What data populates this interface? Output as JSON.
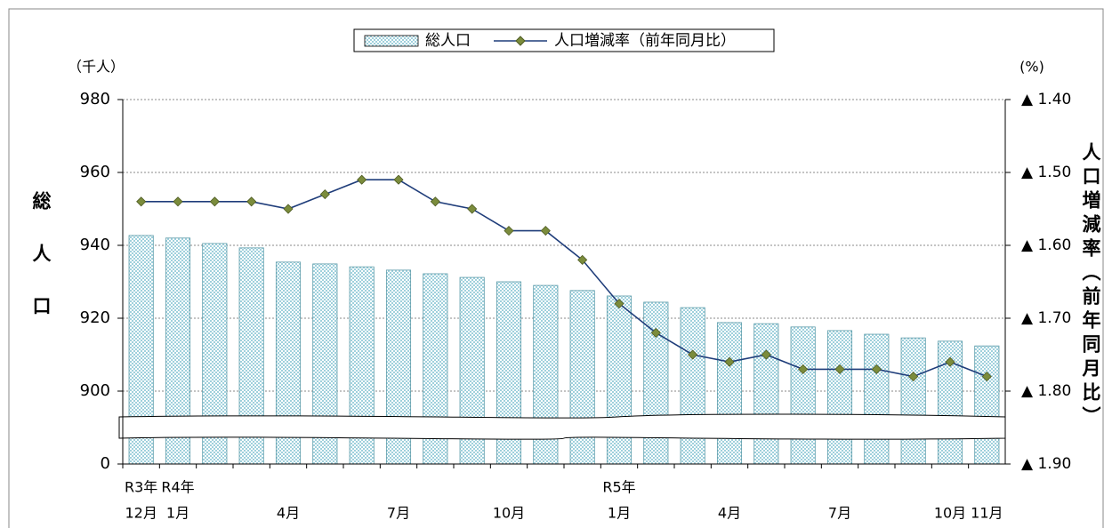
{
  "chart_data": {
    "type": "bar-line",
    "legend_position": "top",
    "y_label": "総人口",
    "y_unit": "（千人）",
    "y2_label": "人口増減率（前年同月比）",
    "y2_unit": "(%)",
    "categories": [
      "12月",
      "1月",
      null,
      null,
      "4月",
      null,
      null,
      "7月",
      null,
      null,
      "10月",
      null,
      null,
      "1月",
      null,
      null,
      "4月",
      null,
      null,
      "7月",
      null,
      null,
      "10月",
      "11月"
    ],
    "category_years": [
      "R3年",
      "R4年",
      null,
      null,
      null,
      null,
      null,
      null,
      null,
      null,
      null,
      null,
      null,
      "R5年",
      null,
      null,
      null,
      null,
      null,
      null,
      null,
      null,
      null,
      null
    ],
    "series": [
      {
        "name": "総人口",
        "type": "bar",
        "color": "#bfe2ea",
        "values": [
          942.7,
          942.0,
          940.5,
          939.3,
          935.4,
          934.9,
          934.1,
          933.2,
          932.2,
          931.2,
          930.0,
          929.0,
          927.6,
          926.1,
          924.4,
          922.9,
          918.8,
          918.5,
          917.6,
          916.6,
          915.6,
          914.6,
          913.7,
          912.4
        ]
      },
      {
        "name": "人口増減率（前年同月比）",
        "type": "line",
        "axis": "y2",
        "color": "#1f3d7a",
        "marker_color": "#7b8c3c",
        "values": [
          -1.54,
          -1.54,
          -1.54,
          -1.54,
          -1.55,
          -1.53,
          -1.51,
          -1.51,
          -1.54,
          -1.55,
          -1.58,
          -1.58,
          -1.62,
          -1.68,
          -1.72,
          -1.75,
          -1.76,
          -1.75,
          -1.77,
          -1.77,
          -1.77,
          -1.78,
          -1.76,
          -1.78
        ]
      }
    ],
    "ylim": [
      0,
      980
    ],
    "yticks": [
      0,
      900,
      920,
      940,
      960,
      980
    ],
    "y_break": [
      0,
      900
    ],
    "y2lim": [
      -1.9,
      -1.4
    ],
    "y2ticks": [
      {
        "value": -1.4,
        "label": "▲ 1.40"
      },
      {
        "value": -1.5,
        "label": "▲ 1.50"
      },
      {
        "value": -1.6,
        "label": "▲ 1.60"
      },
      {
        "value": -1.7,
        "label": "▲ 1.70"
      },
      {
        "value": -1.8,
        "label": "▲ 1.80"
      },
      {
        "value": -1.9,
        "label": "▲ 1.90"
      }
    ],
    "grid": true
  }
}
